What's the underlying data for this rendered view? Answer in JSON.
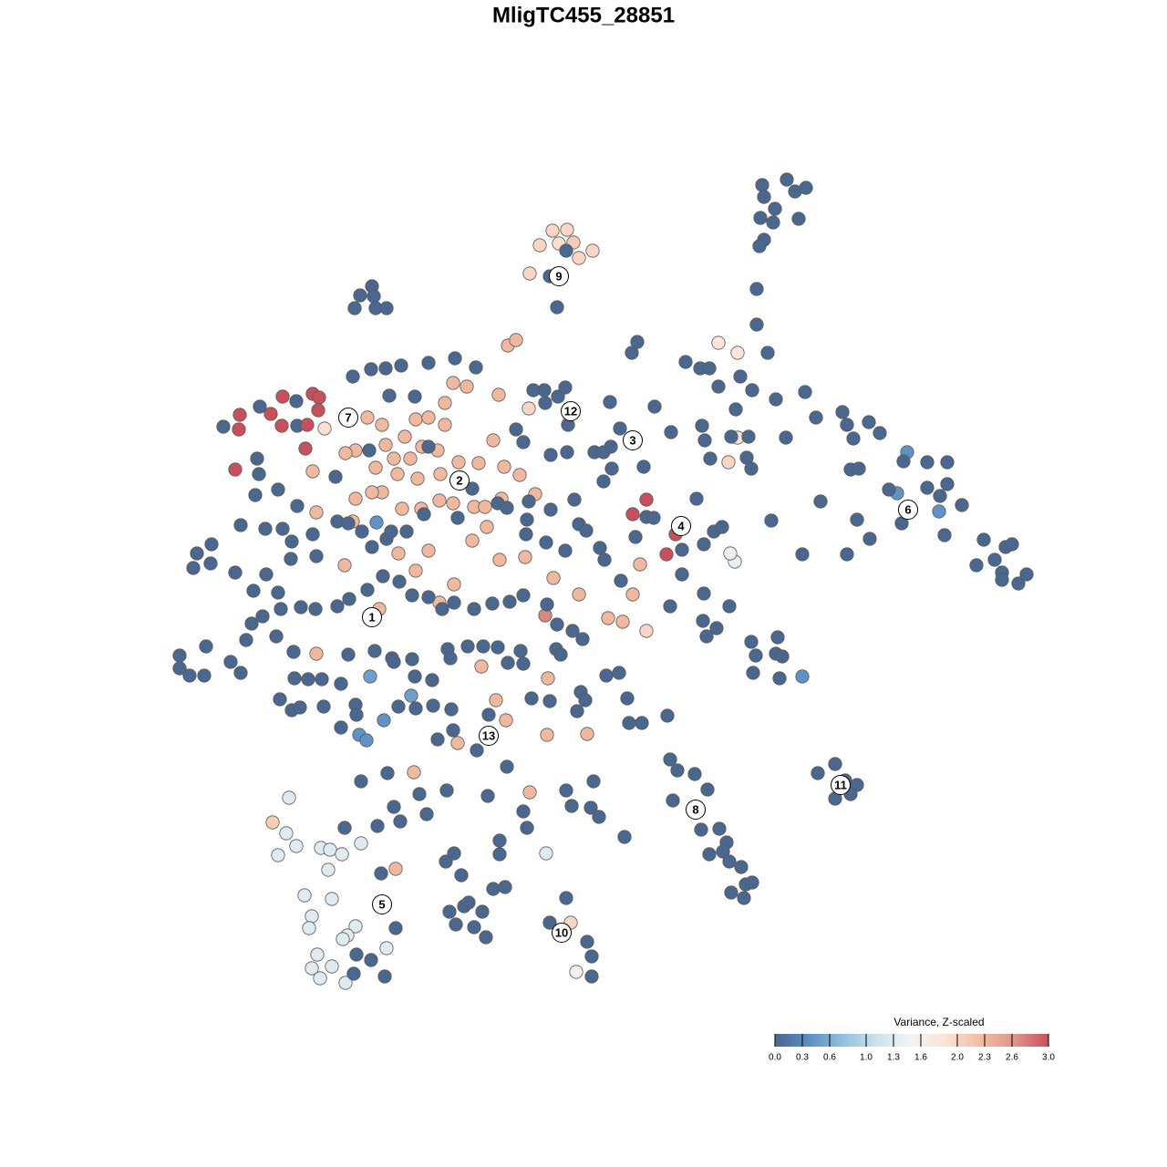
{
  "chart_data": {
    "type": "scatter",
    "title": "MligTC455_28851",
    "xlim": [
      180,
      1140
    ],
    "ylim": [
      1090,
      180
    ],
    "x": [
      606,
      622,
      592,
      613,
      629,
      650,
      635,
      581,
      603,
      611,
      621,
      836,
      863,
      872,
      884,
      838,
      850,
      834,
      848,
      876,
      838,
      833,
      830,
      830,
      842,
      395,
      408,
      410,
      389,
      412,
      424,
      245,
      263,
      262,
      285,
      297,
      310,
      309,
      325,
      326,
      343,
      350,
      349,
      337,
      356,
      335,
      258,
      282,
      284,
      280,
      305,
      326,
      694,
      709,
      731,
      741,
      598,
      709,
      580,
      626,
      317,
      299,
      314,
      305,
      325,
      352,
      362,
      375,
      396,
      360,
      334,
      364,
      342,
      339,
      390,
      381,
      376,
      348,
      364,
      342,
      351,
      379,
      424,
      599,
      806,
      801,
      788,
      809,
      809,
      799,
      632,
      413,
      406,
      451,
      421,
      394,
      402,
      995,
      984,
      1030,
      880,
      403,
      419,
      444,
      456,
      470,
      488,
      497,
      512,
      488,
      480,
      463,
      450,
      432,
      412,
      390,
      379,
      423,
      436,
      458,
      483,
      503,
      525,
      541,
      553,
      570,
      587,
      550,
      520,
      497,
      482,
      462,
      441,
      419,
      408,
      390,
      387,
      347,
      343,
      378,
      437,
      470,
      518,
      534,
      548,
      576,
      557,
      566,
      607,
      635,
      694,
      667,
      683,
      702,
      416,
      456,
      482,
      498,
      528,
      544,
      601,
      555,
      600,
      644,
      502,
      454,
      581,
      434,
      347,
      532,
      547,
      407,
      423,
      440,
      470,
      499,
      522,
      387,
      427,
      455,
      470,
      405,
      368,
      370,
      382,
      397,
      408,
      424,
      429,
      446,
      465,
      502,
      518,
      546,
      556,
      580,
      597,
      612,
      620,
      623,
      598,
      566,
      574,
      604,
      622,
      652,
      662,
      670,
      680,
      669,
      718,
      693,
      699,
      752,
      768,
      778,
      788,
      812,
      825,
      851,
      807,
      770,
      773,
      779,
      802,
      821,
      819,
      824,
      862,
      736,
      706,
      671,
      662,
      630,
      635,
      643,
      604,
      578,
      577,
      599,
      620,
      658,
      663,
      681,
      697,
      709,
      717,
      748,
      764,
      783,
      792,
      772,
      748,
      735,
      772,
      800,
      771,
      786,
      775,
      824,
      829,
      853,
      851,
      858,
      855,
      826,
      732,
      665,
      679,
      688,
      704,
      690,
      637,
      633,
      642,
      610,
      615,
      639,
      628,
      611,
      600,
      574,
      559,
      540,
      520,
      498,
      485,
      470,
      452,
      438,
      420,
      403,
      383,
      370,
      346,
      330,
      308,
      278,
      305,
      292,
      319,
      320,
      343,
      347,
      310,
      291,
      264,
      232,
      216,
      212,
      231,
      258,
      276,
      270,
      288,
      303,
      322,
      382,
      411,
      430,
      452,
      491,
      494,
      513,
      530,
      546,
      557,
      574,
      571,
      583,
      603,
      523,
      536,
      556,
      480,
      497,
      495,
      475,
      456,
      437,
      474,
      455,
      432,
      374,
      353,
      338,
      323,
      307,
      320,
      329,
      355,
      390,
      391,
      374,
      396,
      425,
      432,
      414,
      439,
      460,
      468,
      490,
      535,
      574,
      578,
      548,
      548,
      621,
      651,
      627,
      648,
      657,
      685,
      489,
      498,
      506,
      541,
      554,
      509,
      493,
      500,
      520,
      533,
      603,
      621,
      644,
      649,
      649,
      418,
      434,
      407,
      391,
      388,
      422,
      378,
      197,
      197,
      208,
      224,
      226,
      253,
      264,
      735,
      743,
      762,
      776,
      738,
      769,
      789,
      797,
      793,
      778,
      800,
      813,
      802,
      818,
      825,
      816,
      916,
      897,
      927,
      940,
      916,
      933,
      883,
      895,
      924,
      929,
      953,
      965,
      936,
      933,
      942,
      991,
      1017,
      1039,
      1039,
      1031,
      1055,
      1017,
      975,
      989,
      1036,
      1079,
      1091,
      1071,
      1099,
      1103,
      1110,
      1117,
      1126,
      1099,
      940,
      954,
      929,
      880,
      846,
      900,
      529,
      514,
      585
    ],
    "y": [
      253,
      252,
      269,
      267,
      266,
      275,
      283,
      300,
      303,
      337,
      275,
      203,
      197,
      210,
      206,
      216,
      229,
      239,
      244,
      240,
      263,
      270,
      317,
      356,
      387,
      324,
      314,
      325,
      338,
      338,
      338,
      468,
      455,
      471,
      446,
      454,
      435,
      467,
      440,
      467,
      432,
      436,
      450,
      466,
      470,
      492,
      515,
      503,
      520,
      543,
      537,
      555,
      564,
      548,
      608,
      586,
      675,
      692,
      448,
      1012,
      875,
      902,
      914,
      938,
      928,
      930,
      932,
      937,
      925,
      954,
      982,
      986,
      1005,
      1018,
      1016,
      1026,
      1030,
      1047,
      1060,
      1062,
      1073,
      1078,
      1040,
      936,
      616,
      607,
      376,
      387,
      480,
      507,
      1066,
      573,
      742,
      763,
      790,
      806,
      812,
      496,
      541,
      561,
      742,
      458,
      466,
      479,
      460,
      458,
      466,
      420,
      424,
      442,
      494,
      490,
      503,
      503,
      513,
      494,
      497,
      488,
      520,
      525,
      520,
      507,
      508,
      483,
      512,
      521,
      542,
      547,
      556,
      552,
      549,
      558,
      558,
      540,
      540,
      547,
      572,
      562,
      517,
      620,
      607,
      604,
      593,
      578,
      614,
      611,
      379,
      373,
      634,
      652,
      652,
      678,
      682,
      619,
      668,
      626,
      661,
      641,
      731,
      768,
      744,
      790,
      806,
      805,
      815,
      847,
      869,
      953,
      717,
      556,
      433,
      405,
      404,
      401,
      398,
      393,
      403,
      413,
      434,
      435,
      490,
      494,
      523,
      572,
      574,
      583,
      600,
      591,
      583,
      583,
      564,
      568,
      536,
      552,
      557,
      550,
      428,
      435,
      425,
      466,
      442,
      471,
      485,
      499,
      496,
      496,
      496,
      490,
      470,
      441,
      446,
      387,
      375,
      397,
      404,
      404,
      424,
      413,
      428,
      438,
      449,
      467,
      483,
      503,
      479,
      479,
      502,
      514,
      480,
      474,
      512,
      514,
      528,
      548,
      575,
      582,
      559,
      570,
      586,
      595,
      604,
      601,
      614,
      637,
      589,
      567,
      568,
      603,
      547,
      583,
      578,
      597,
      630,
      665,
      651,
      665,
      681,
      689,
      698,
      704,
      719,
      699,
      717,
      720,
      744,
      738,
      785,
      741,
      738,
      766,
      793,
      793,
      759,
      780,
      768,
      712,
      718,
      701,
      692,
      685,
      663,
      653,
      660,
      662,
      668,
      661,
      668,
      655,
      653,
      638,
      632,
      647,
      657,
      665,
      668,
      666,
      668,
      648,
      650,
      630,
      613,
      594,
      586,
      610,
      580,
      580,
      576,
      597,
      607,
      623,
      618,
      628,
      684,
      702,
      676,
      698,
      715,
      718,
      714,
      722,
      723,
      712,
      722,
      709,
      709,
      710,
      727,
      728,
      714,
      766,
      769,
      823,
      784,
      841,
      811,
      801,
      778,
      774,
      777,
      775,
      746,
      742,
      726,
      750,
      745,
      745,
      744,
      767,
      779,
      776,
      775,
      773,
      784,
      798,
      857,
      848,
      885,
      906,
      901,
      871,
      893,
      867,
      873,
      890,
      908,
      922,
      937,
      867,
      857,
      884,
      886,
      896,
      918,
      945,
      936,
      960,
      975,
      973,
      994,
      1000,
      1014,
      1017,
      1028,
      1012,
      985,
      1033,
      1049,
      1071,
      958,
      1018,
      1053,
      1047,
      1068,
      1071,
      908,
      719,
      733,
      741,
      741,
      709,
      726,
      738,
      833,
      845,
      849,
      866,
      878,
      910,
      909,
      924,
      934,
      937,
      945,
      951,
      979,
      970,
      968,
      985,
      838,
      848,
      856,
      861,
      876,
      871,
      430,
      458,
      452,
      466,
      463,
      475,
      481,
      515,
      514,
      506,
      507,
      507,
      531,
      544,
      554,
      535,
      537,
      574,
      587,
      592,
      614,
      620,
      628,
      600,
      597,
      640,
      630,
      636,
      570,
      591,
      608,
      608,
      571,
      550,
      1000,
      990,
      428
    ],
    "values": [
      2,
      2,
      2,
      1.9,
      2.1,
      2,
      2,
      2,
      0,
      0,
      0,
      0,
      0,
      0,
      0,
      0,
      0,
      0,
      0,
      0,
      0,
      0,
      0,
      0,
      0,
      0,
      0,
      0,
      0,
      0,
      0,
      0,
      3,
      3,
      0,
      3,
      3,
      3,
      0,
      0,
      3,
      3,
      3,
      3,
      1.9,
      3,
      3,
      0,
      0,
      0,
      0,
      0,
      3,
      3,
      3,
      3,
      2.7,
      2,
      2,
      2,
      1.3,
      2.1,
      1.3,
      1.3,
      1.3,
      1.3,
      1.3,
      1.3,
      1.3,
      1.3,
      1.3,
      1.3,
      1.3,
      1.3,
      1.3,
      1.3,
      1.3,
      1.3,
      1.3,
      1.3,
      1.3,
      1.3,
      1.3,
      1.3,
      1.4,
      1.4,
      1.8,
      1.8,
      1.9,
      2,
      1.6,
      0.4,
      0.5,
      0.5,
      0.4,
      0.4,
      0.4,
      0.4,
      0.4,
      0.4,
      0.4,
      2.3,
      2.3,
      2.3,
      2.3,
      2.3,
      2.3,
      2.3,
      2.3,
      2.3,
      2.3,
      2.3,
      2.3,
      2.3,
      2.3,
      2.3,
      2.3,
      2.3,
      2.3,
      2.3,
      2.3,
      2.3,
      2.3,
      2.3,
      2.3,
      2.3,
      2.3,
      2.3,
      2.3,
      2.3,
      2.3,
      2.3,
      2.3,
      2.3,
      2.3,
      2.3,
      2.3,
      2.3,
      2.3,
      2.3,
      2.3,
      2.3,
      2.3,
      2.3,
      2.3,
      2.3,
      2.3,
      2.3,
      2.3,
      2.3,
      2.3,
      2.3,
      2.3,
      2.3,
      2.3,
      2.3,
      2.3,
      2.3,
      2.3,
      2.3,
      2.3,
      2.3,
      2.3,
      2.3,
      2.3,
      2.3,
      2.3,
      2.3,
      2.3,
      2.3,
      2.3,
      0,
      0,
      0,
      0,
      0,
      0,
      0,
      0,
      0,
      0,
      0,
      0,
      0,
      0,
      0,
      0,
      0,
      0,
      0,
      0,
      0,
      0,
      0,
      0,
      0,
      0,
      0,
      0,
      0,
      0,
      0,
      0,
      0,
      0,
      0,
      0,
      0,
      0,
      0,
      0,
      0,
      0,
      0,
      0,
      0,
      0,
      0,
      0,
      0,
      0,
      0,
      0,
      0,
      0,
      0,
      0,
      0,
      0,
      0,
      0,
      0,
      0,
      0,
      0,
      0,
      0,
      0,
      0,
      0,
      0,
      0,
      0,
      0,
      0,
      0,
      0,
      0,
      0,
      0,
      0,
      0,
      0,
      0,
      0,
      0,
      0,
      0,
      0,
      0,
      0,
      0,
      0,
      0,
      0,
      0,
      0,
      0,
      0,
      0,
      0,
      0,
      0,
      0,
      0,
      0,
      0,
      0,
      0,
      0,
      0,
      0,
      0,
      0,
      0,
      0,
      0,
      0,
      0,
      0,
      0,
      0,
      0,
      0,
      0,
      0,
      0,
      0,
      0,
      0,
      0,
      0,
      0,
      0,
      0,
      0,
      0,
      0,
      0,
      0,
      0,
      0,
      0,
      0,
      0,
      0,
      0,
      0,
      0,
      0,
      0,
      0,
      0,
      0,
      0,
      0,
      0,
      0,
      0,
      0,
      0,
      0,
      0,
      0,
      0,
      0,
      0,
      0,
      0,
      0,
      0,
      0,
      0,
      0,
      0,
      0,
      0,
      0,
      0,
      0,
      0,
      0,
      0,
      0,
      0,
      0,
      0,
      0,
      0,
      0,
      0,
      0,
      0,
      0,
      0,
      0,
      0,
      0,
      0,
      0,
      0,
      0,
      0,
      0,
      0,
      0,
      0,
      0,
      0,
      0,
      0,
      0,
      0,
      0,
      0,
      0,
      0,
      0,
      0,
      0,
      0,
      0,
      0,
      0,
      0,
      0,
      0,
      0,
      0,
      0,
      0,
      0,
      0,
      0,
      0,
      0,
      0,
      0,
      0,
      0,
      0,
      0,
      0,
      0,
      0,
      0,
      0,
      0,
      0,
      0,
      0,
      0,
      0,
      0,
      0,
      0,
      0,
      0,
      0,
      0,
      0,
      0,
      0,
      0,
      0,
      0,
      0,
      0,
      0,
      0,
      0,
      0,
      0,
      0,
      0,
      0,
      0,
      0,
      0,
      0,
      0,
      0,
      0,
      0,
      0,
      0,
      0,
      0,
      0,
      0,
      0
    ],
    "clusters": {
      "labels": [
        "1",
        "2",
        "3",
        "4",
        "5",
        "6",
        "7",
        "8",
        "9",
        "10",
        "11",
        "12",
        "13"
      ],
      "x": [
        408,
        504,
        694,
        747,
        419,
        996,
        382,
        763,
        613,
        616,
        922,
        626,
        536
      ],
      "y": [
        677,
        527,
        483,
        577,
        992,
        559,
        458,
        888,
        303,
        1023,
        861,
        451,
        807
      ]
    },
    "colorbar": {
      "title": "Variance, Z-scaled",
      "lim": [
        0,
        3
      ],
      "ticks": [
        {
          "value": 0,
          "label": "0.0"
        },
        0.3,
        0.6,
        {
          "value": 1,
          "label": "1.0"
        },
        1.3,
        1.6,
        {
          "value": 2,
          "label": "2.0"
        },
        2.3,
        2.6,
        {
          "value": 3,
          "label": "3.0"
        }
      ],
      "colors": [
        "#4a6790",
        "#5b8fc4",
        "#92c0de",
        "#cfe2ee",
        "#f4f4f4",
        "#fbe2d4",
        "#f3bda1",
        "#e0968a",
        "#c84f5c"
      ]
    }
  }
}
